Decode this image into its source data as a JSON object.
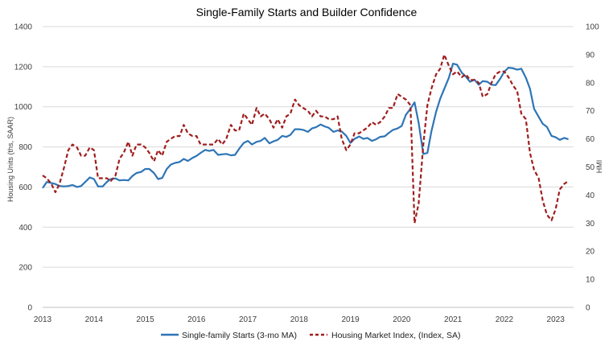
{
  "chart_data": {
    "type": "line",
    "title": "Single-Family Starts and Builder Confidence",
    "ylabel_left": "Housing Units (ths, SAAR)",
    "ylabel_right": "HMI",
    "x_ticks": [
      "2013",
      "2014",
      "2015",
      "2016",
      "2017",
      "2018",
      "2019",
      "2020",
      "2021",
      "2022",
      "2023"
    ],
    "y_left_ticks": [
      "0",
      "200",
      "400",
      "600",
      "800",
      "1000",
      "1200",
      "1400"
    ],
    "y_right_ticks": [
      "0",
      "10",
      "20",
      "30",
      "40",
      "50",
      "60",
      "70",
      "80",
      "90",
      "100"
    ],
    "ylim_left": [
      0,
      1400
    ],
    "ylim_right": [
      0,
      100
    ],
    "xlim": [
      2013.0,
      2023.35
    ],
    "grid": "horizontal",
    "legend_position": "bottom",
    "colors": {
      "starts": "#2e75b6",
      "hmi": "#a01d1d",
      "grid": "#d9d9d9"
    },
    "series": [
      {
        "name": "Single-family Starts (3-mo MA)",
        "axis": "left",
        "style": "solid",
        "x": [
          2013.0,
          2013.08,
          2013.17,
          2013.25,
          2013.33,
          2013.42,
          2013.5,
          2013.58,
          2013.67,
          2013.75,
          2013.83,
          2013.92,
          2014.0,
          2014.08,
          2014.17,
          2014.25,
          2014.33,
          2014.42,
          2014.5,
          2014.58,
          2014.67,
          2014.75,
          2014.83,
          2014.92,
          2015.0,
          2015.08,
          2015.17,
          2015.25,
          2015.33,
          2015.42,
          2015.5,
          2015.58,
          2015.67,
          2015.75,
          2015.83,
          2015.92,
          2016.0,
          2016.08,
          2016.17,
          2016.25,
          2016.33,
          2016.42,
          2016.5,
          2016.58,
          2016.67,
          2016.75,
          2016.83,
          2016.92,
          2017.0,
          2017.08,
          2017.17,
          2017.25,
          2017.33,
          2017.42,
          2017.5,
          2017.58,
          2017.67,
          2017.75,
          2017.83,
          2017.92,
          2018.0,
          2018.08,
          2018.17,
          2018.25,
          2018.33,
          2018.42,
          2018.5,
          2018.58,
          2018.67,
          2018.75,
          2018.83,
          2018.92,
          2019.0,
          2019.08,
          2019.17,
          2019.25,
          2019.33,
          2019.42,
          2019.5,
          2019.58,
          2019.67,
          2019.75,
          2019.83,
          2019.92,
          2020.0,
          2020.08,
          2020.17,
          2020.25,
          2020.33,
          2020.42,
          2020.5,
          2020.58,
          2020.67,
          2020.75,
          2020.83,
          2020.92,
          2021.0,
          2021.08,
          2021.17,
          2021.25,
          2021.33,
          2021.42,
          2021.5,
          2021.58,
          2021.67,
          2021.75,
          2021.83,
          2021.92,
          2022.0,
          2022.08,
          2022.17,
          2022.25,
          2022.33,
          2022.42,
          2022.5,
          2022.58,
          2022.67,
          2022.75,
          2022.83,
          2022.92,
          2023.0,
          2023.08,
          2023.17,
          2023.25
        ],
        "values": [
          595,
          625,
          620,
          615,
          605,
          603,
          605,
          610,
          600,
          605,
          625,
          648,
          640,
          603,
          603,
          625,
          640,
          643,
          633,
          635,
          633,
          655,
          670,
          675,
          690,
          690,
          670,
          640,
          645,
          690,
          712,
          720,
          725,
          740,
          730,
          745,
          755,
          770,
          785,
          780,
          785,
          760,
          763,
          765,
          758,
          760,
          790,
          820,
          830,
          812,
          825,
          830,
          845,
          818,
          828,
          835,
          855,
          850,
          860,
          888,
          888,
          885,
          875,
          892,
          898,
          912,
          902,
          895,
          875,
          882,
          877,
          855,
          820,
          840,
          852,
          840,
          845,
          830,
          838,
          850,
          853,
          870,
          885,
          892,
          905,
          960,
          990,
          1022,
          920,
          765,
          770,
          880,
          975,
          1040,
          1090,
          1145,
          1215,
          1210,
          1170,
          1150,
          1125,
          1135,
          1110,
          1128,
          1125,
          1110,
          1108,
          1140,
          1175,
          1195,
          1192,
          1185,
          1190,
          1145,
          1090,
          990,
          950,
          915,
          900,
          855,
          848,
          835,
          845,
          838
        ]
      },
      {
        "name": "Housing Market Index, (Index, SA)",
        "axis": "right",
        "style": "dashed",
        "x": [
          2013.0,
          2013.08,
          2013.17,
          2013.25,
          2013.33,
          2013.42,
          2013.5,
          2013.58,
          2013.67,
          2013.75,
          2013.83,
          2013.92,
          2014.0,
          2014.08,
          2014.17,
          2014.25,
          2014.33,
          2014.42,
          2014.5,
          2014.58,
          2014.67,
          2014.75,
          2014.83,
          2014.92,
          2015.0,
          2015.08,
          2015.17,
          2015.25,
          2015.33,
          2015.42,
          2015.5,
          2015.58,
          2015.67,
          2015.75,
          2015.83,
          2015.92,
          2016.0,
          2016.08,
          2016.17,
          2016.25,
          2016.33,
          2016.42,
          2016.5,
          2016.58,
          2016.67,
          2016.75,
          2016.83,
          2016.92,
          2017.0,
          2017.08,
          2017.17,
          2017.25,
          2017.33,
          2017.42,
          2017.5,
          2017.58,
          2017.67,
          2017.75,
          2017.83,
          2017.92,
          2018.0,
          2018.08,
          2018.17,
          2018.25,
          2018.33,
          2018.42,
          2018.5,
          2018.58,
          2018.67,
          2018.75,
          2018.83,
          2018.92,
          2019.0,
          2019.08,
          2019.17,
          2019.25,
          2019.33,
          2019.42,
          2019.5,
          2019.58,
          2019.67,
          2019.75,
          2019.83,
          2019.92,
          2020.0,
          2020.08,
          2020.17,
          2020.25,
          2020.33,
          2020.42,
          2020.5,
          2020.58,
          2020.67,
          2020.75,
          2020.83,
          2020.92,
          2021.0,
          2021.08,
          2021.17,
          2021.25,
          2021.33,
          2021.42,
          2021.5,
          2021.58,
          2021.67,
          2021.75,
          2021.83,
          2021.92,
          2022.0,
          2022.08,
          2022.17,
          2022.25,
          2022.33,
          2022.42,
          2022.5,
          2022.58,
          2022.67,
          2022.75,
          2022.83,
          2022.92,
          2023.0,
          2023.08,
          2023.17,
          2023.25
        ],
        "values": [
          47,
          46,
          44,
          41,
          44,
          50,
          56,
          58,
          57,
          54,
          54,
          57,
          56,
          46,
          46,
          46,
          45,
          47,
          53,
          55,
          59,
          54,
          58,
          58,
          57,
          55,
          52,
          56,
          54,
          59,
          60,
          61,
          61,
          65,
          62,
          61,
          61,
          58,
          58,
          58,
          58,
          60,
          58,
          60,
          65,
          63,
          63,
          69,
          67,
          65,
          71,
          68,
          69,
          67,
          64,
          67,
          64,
          68,
          69,
          74,
          72,
          71,
          70,
          68,
          70,
          68,
          68,
          67,
          67,
          68,
          60,
          56,
          58,
          62,
          62,
          63,
          64,
          66,
          65,
          66,
          68,
          71,
          71,
          76,
          75,
          74,
          72,
          30,
          37,
          58,
          72,
          78,
          83,
          85,
          90,
          86,
          83,
          84,
          82,
          83,
          81,
          81,
          80,
          75,
          76,
          80,
          83,
          84,
          84,
          82,
          79,
          77,
          69,
          67,
          55,
          49,
          46,
          38,
          33,
          31,
          35,
          42,
          44,
          45
        ]
      }
    ]
  }
}
